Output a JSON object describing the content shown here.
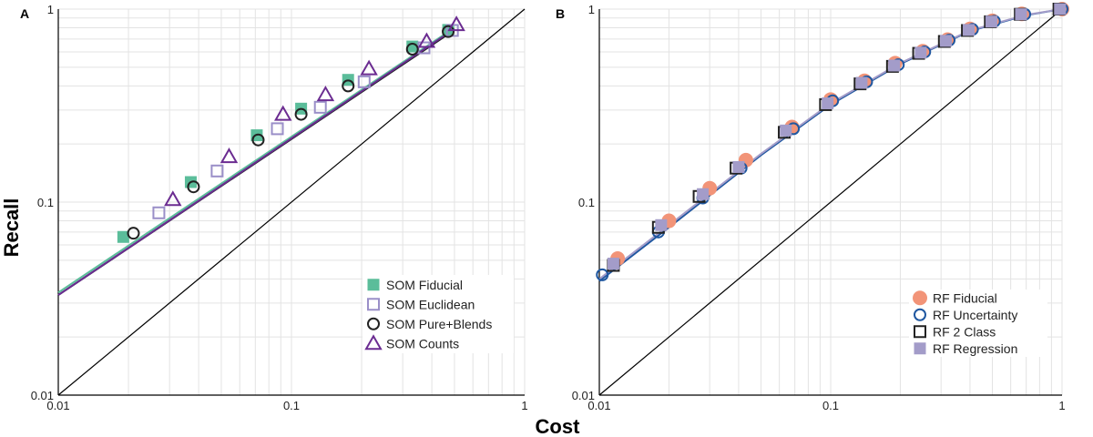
{
  "figure": {
    "xlabel": "Cost",
    "ylabel": "Recall"
  },
  "colors": {
    "som_fiducial": "#5bbd9a",
    "som_euclidean": "#9a8fc8",
    "som_pure": "#222222",
    "som_counts": "#6b2c91",
    "rf_fiducial": "#f29478",
    "rf_uncertainty": "#1f57a0",
    "rf_2class": "#222222",
    "rf_regression": "#a39cc9",
    "diagonal": "#000000",
    "grid": "#e3e3e3"
  },
  "chart_data": [
    {
      "panel": "A",
      "type": "scatter",
      "xscale": "log",
      "yscale": "log",
      "xlim": [
        0.01,
        1
      ],
      "ylim": [
        0.01,
        1
      ],
      "xticks": [
        "0.01",
        "0.1",
        "1"
      ],
      "yticks": [
        "0.01",
        "0.1",
        "1"
      ],
      "grid": true,
      "legend_position": "bottom-right",
      "reference_line": "y = x",
      "series": [
        {
          "name": "SOM Fiducial",
          "marker": "filled-square",
          "color_key": "som_fiducial",
          "x": [
            0.019,
            0.037,
            0.071,
            0.11,
            0.175,
            0.33,
            0.47
          ],
          "y": [
            0.066,
            0.127,
            0.222,
            0.305,
            0.43,
            0.64,
            0.78
          ],
          "fit_x": [
            0.01,
            0.5
          ],
          "fit_y": [
            0.034,
            0.8
          ]
        },
        {
          "name": "SOM Euclidean",
          "marker": "open-square",
          "color_key": "som_euclidean",
          "x": [
            0.027,
            0.048,
            0.087,
            0.133,
            0.205,
            0.37,
            0.49
          ],
          "y": [
            0.088,
            0.145,
            0.24,
            0.31,
            0.42,
            0.63,
            0.775
          ],
          "fit_x": [
            0.01,
            0.5
          ],
          "fit_y": [
            0.033,
            0.78
          ]
        },
        {
          "name": "SOM Pure+Blends",
          "marker": "open-circle",
          "color_key": "som_pure",
          "x": [
            0.021,
            0.038,
            0.072,
            0.11,
            0.175,
            0.33,
            0.47
          ],
          "y": [
            0.069,
            0.12,
            0.21,
            0.285,
            0.4,
            0.62,
            0.765
          ],
          "fit_x": [
            0.01,
            0.5
          ],
          "fit_y": [
            0.033,
            0.78
          ]
        },
        {
          "name": "SOM Counts",
          "marker": "open-triangle",
          "color_key": "som_counts",
          "x": [
            0.031,
            0.054,
            0.092,
            0.14,
            0.215,
            0.38,
            0.51
          ],
          "y": [
            0.103,
            0.172,
            0.285,
            0.36,
            0.49,
            0.68,
            0.83
          ],
          "fit_x": [
            0.01,
            0.5
          ],
          "fit_y": [
            0.033,
            0.79
          ]
        }
      ]
    },
    {
      "panel": "B",
      "type": "scatter",
      "xscale": "log",
      "yscale": "log",
      "xlim": [
        0.01,
        1
      ],
      "ylim": [
        0.01,
        1
      ],
      "xticks": [
        "0.01",
        "0.1",
        "1"
      ],
      "yticks": [
        "0.01",
        "0.1",
        "1"
      ],
      "grid": true,
      "legend_position": "bottom-right",
      "reference_line": "y = x",
      "series": [
        {
          "name": "RF Fiducial",
          "marker": "filled-circle",
          "color_key": "rf_fiducial",
          "x": [
            0.012,
            0.02,
            0.03,
            0.043,
            0.068,
            0.1,
            0.14,
            0.19,
            0.25,
            0.32,
            0.4,
            0.5,
            0.67,
            1.0
          ],
          "y": [
            0.051,
            0.08,
            0.118,
            0.165,
            0.245,
            0.34,
            0.425,
            0.525,
            0.605,
            0.695,
            0.79,
            0.87,
            0.945,
            1.0
          ]
        },
        {
          "name": "RF Uncertainty",
          "marker": "open-circle",
          "color_key": "rf_uncertainty",
          "x": [
            0.0103,
            0.018,
            0.028,
            0.041,
            0.069,
            0.102,
            0.143,
            0.196,
            0.255,
            0.325,
            0.41,
            0.51,
            0.69,
            1.0
          ],
          "y": [
            0.042,
            0.07,
            0.105,
            0.15,
            0.24,
            0.335,
            0.42,
            0.515,
            0.6,
            0.69,
            0.785,
            0.865,
            0.94,
            1.0
          ],
          "fit_x": [
            0.01,
            0.02,
            0.05,
            0.1,
            0.2,
            0.4,
            0.7,
            1.0
          ],
          "fit_y": [
            0.039,
            0.074,
            0.175,
            0.32,
            0.52,
            0.77,
            0.93,
            1.0
          ]
        },
        {
          "name": "RF 2 Class",
          "marker": "open-square",
          "color_key": "rf_2class",
          "x": [
            0.0115,
            0.018,
            0.027,
            0.039,
            0.063,
            0.095,
            0.134,
            0.185,
            0.24,
            0.31,
            0.39,
            0.49,
            0.66,
            0.97
          ],
          "y": [
            0.047,
            0.074,
            0.107,
            0.15,
            0.23,
            0.32,
            0.41,
            0.505,
            0.59,
            0.68,
            0.775,
            0.86,
            0.94,
            1.0
          ]
        },
        {
          "name": "RF Regression",
          "marker": "filled-square",
          "color_key": "rf_regression",
          "x": [
            0.0115,
            0.0185,
            0.028,
            0.04,
            0.064,
            0.097,
            0.136,
            0.188,
            0.245,
            0.315,
            0.395,
            0.495,
            0.665,
            0.98
          ],
          "y": [
            0.048,
            0.076,
            0.11,
            0.152,
            0.235,
            0.325,
            0.415,
            0.51,
            0.595,
            0.685,
            0.78,
            0.862,
            0.94,
            1.0
          ],
          "fit_x": [
            0.01,
            0.02,
            0.05,
            0.1,
            0.2,
            0.4,
            0.7,
            1.0
          ],
          "fit_y": [
            0.04,
            0.076,
            0.178,
            0.325,
            0.525,
            0.775,
            0.935,
            1.0
          ]
        }
      ]
    }
  ]
}
